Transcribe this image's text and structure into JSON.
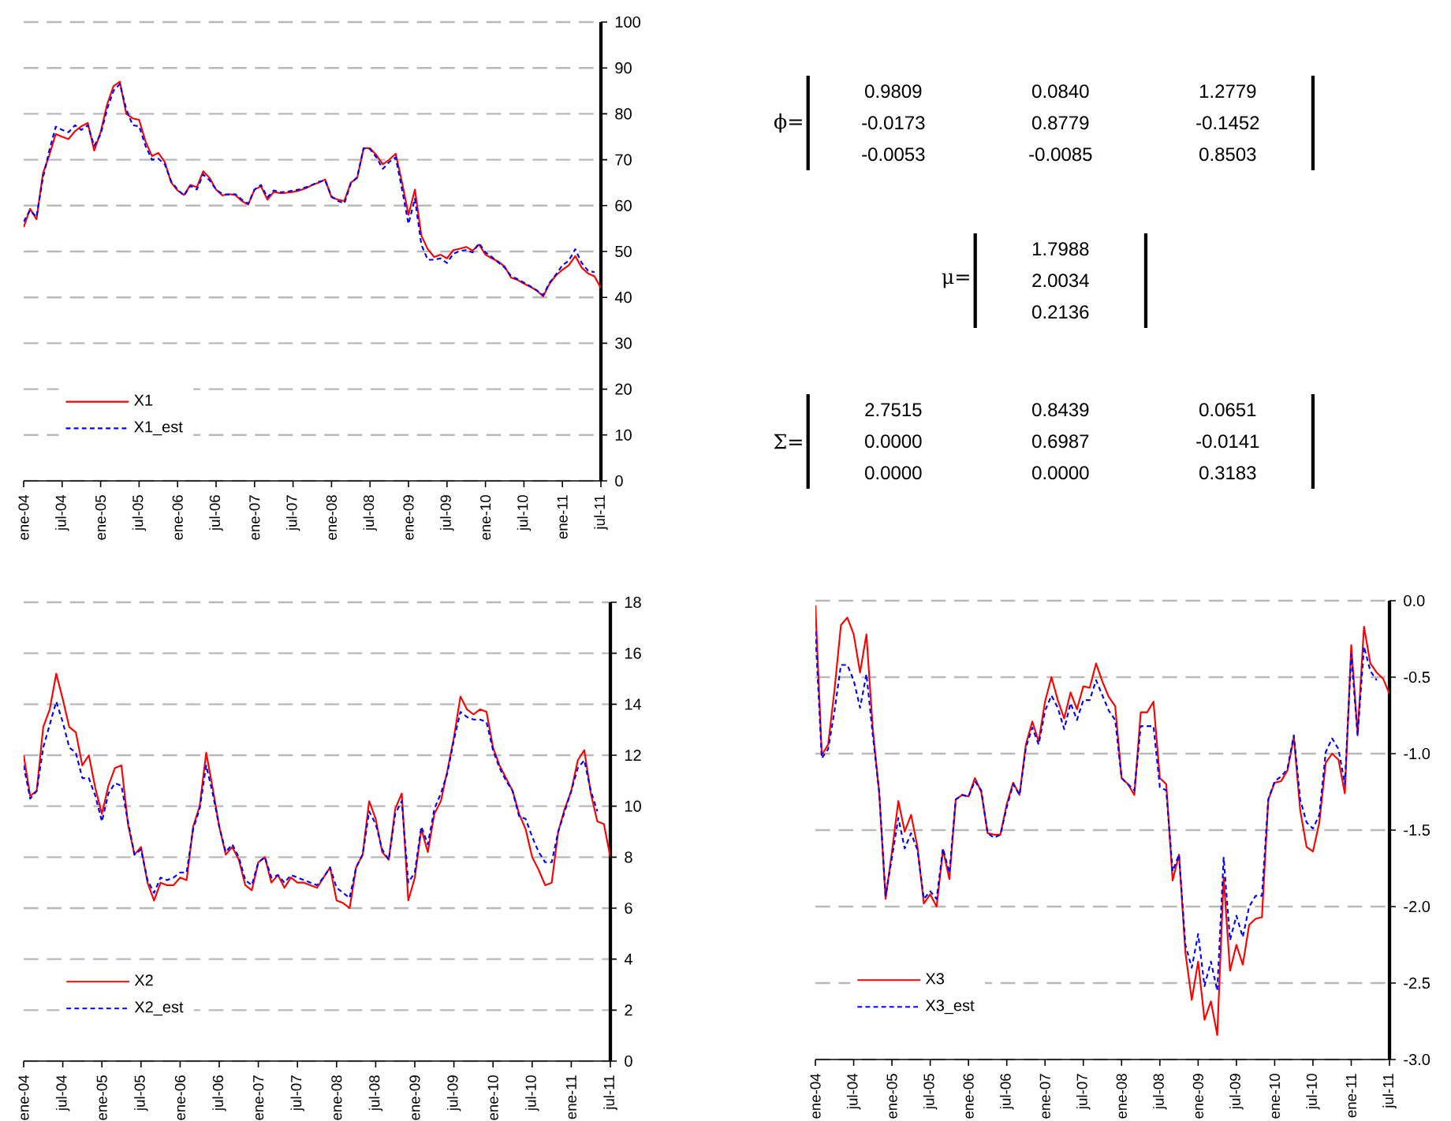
{
  "chart_data": [
    {
      "type": "line",
      "grid": "y",
      "legend": "bottom left",
      "marker": "none",
      "x": [
        "2004-01",
        "2004-02",
        "2004-03",
        "2004-04",
        "2004-05",
        "2004-06",
        "2004-07",
        "2004-08",
        "2004-09",
        "2004-10",
        "2004-11",
        "2004-12",
        "2005-01",
        "2005-02",
        "2005-03",
        "2005-04",
        "2005-05",
        "2005-06",
        "2005-07",
        "2005-08",
        "2005-09",
        "2005-10",
        "2005-11",
        "2005-12",
        "2006-01",
        "2006-02",
        "2006-03",
        "2006-04",
        "2006-05",
        "2006-06",
        "2006-07",
        "2006-08",
        "2006-09",
        "2006-10",
        "2006-11",
        "2006-12",
        "2007-01",
        "2007-02",
        "2007-03",
        "2007-04",
        "2007-05",
        "2007-06",
        "2007-07",
        "2007-08",
        "2007-09",
        "2007-10",
        "2007-11",
        "2007-12",
        "2008-01",
        "2008-02",
        "2008-03",
        "2008-04",
        "2008-05",
        "2008-06",
        "2008-07",
        "2008-08",
        "2008-09",
        "2008-10",
        "2008-11",
        "2008-12",
        "2009-01",
        "2009-02",
        "2009-03",
        "2009-04",
        "2009-05",
        "2009-06",
        "2009-07",
        "2009-08",
        "2009-09",
        "2009-10",
        "2009-11",
        "2009-12",
        "2010-01",
        "2010-02",
        "2010-03",
        "2010-04",
        "2010-05",
        "2010-06",
        "2010-07",
        "2010-08",
        "2010-09",
        "2010-10",
        "2010-11",
        "2010-12",
        "2011-01",
        "2011-02",
        "2011-03",
        "2011-04",
        "2011-05",
        "2011-06",
        "2011-07"
      ],
      "xlim": [
        "2004-01",
        "2011-07"
      ],
      "xticks": [
        {
          "value": "2004-01",
          "label": "ene-04"
        },
        {
          "value": "2004-07",
          "label": "jul-04"
        },
        {
          "value": "2005-01",
          "label": "ene-05"
        },
        {
          "value": "2005-07",
          "label": "jul-05"
        },
        {
          "value": "2006-01",
          "label": "ene-06"
        },
        {
          "value": "2006-07",
          "label": "jul-06"
        },
        {
          "value": "2007-01",
          "label": "ene-07"
        },
        {
          "value": "2007-07",
          "label": "jul-07"
        },
        {
          "value": "2008-01",
          "label": "ene-08"
        },
        {
          "value": "2008-07",
          "label": "jul-08"
        },
        {
          "value": "2009-01",
          "label": "ene-09"
        },
        {
          "value": "2009-07",
          "label": "jul-09"
        },
        {
          "value": "2010-01",
          "label": "ene-10"
        },
        {
          "value": "2010-07",
          "label": "jul-10"
        },
        {
          "value": "2011-01",
          "label": "ene-11"
        },
        {
          "value": "2011-07",
          "label": "jul-11"
        }
      ],
      "ylim": [
        0,
        100
      ],
      "yticks": [
        0,
        10,
        20,
        30,
        40,
        50,
        60,
        70,
        80,
        90,
        100
      ],
      "series": [
        {
          "name": "X1",
          "color": "#ff0000",
          "line_style": "solid",
          "values": [
            55.3,
            59.3,
            57,
            67,
            71,
            75.6,
            75,
            74.5,
            76.2,
            77.3,
            78,
            72,
            76,
            82,
            86,
            87,
            80,
            79,
            78.7,
            74,
            70.8,
            71.5,
            69.5,
            65,
            63.3,
            62.3,
            64.5,
            64,
            67.5,
            66,
            63.5,
            62.2,
            62.5,
            62.3,
            61,
            60.2,
            63.5,
            64.2,
            61.3,
            63,
            62.7,
            62.8,
            63,
            63.3,
            63.8,
            64.5,
            65,
            65.7,
            61.8,
            61.3,
            61,
            65,
            66,
            72.5,
            72.5,
            71,
            69,
            70,
            71.3,
            65,
            58,
            63.5,
            53.5,
            50.5,
            48.8,
            49.3,
            48.5,
            50.3,
            50.6,
            51,
            50.2,
            51.5,
            49.3,
            48.5,
            47.8,
            46.7,
            44.3,
            43.8,
            43,
            42.3,
            41.5,
            40.2,
            43,
            44.8,
            46,
            47,
            49,
            46.5,
            45.2,
            44.6,
            42
          ]
        },
        {
          "name": "X1_est",
          "color": "#0000ff",
          "line_style": "dashed",
          "values": [
            56.5,
            59,
            57.5,
            66,
            72,
            77.2,
            76.5,
            76,
            77.5,
            76.5,
            77.5,
            73,
            75.5,
            81,
            85,
            86.5,
            81,
            77.5,
            77.3,
            73,
            70,
            70.2,
            69,
            65.3,
            63.5,
            62.2,
            64.3,
            63.5,
            66.8,
            65.5,
            63.5,
            62.5,
            62.4,
            62.5,
            61.3,
            60.4,
            63.5,
            64.5,
            61.8,
            63.3,
            62.9,
            63,
            63.3,
            63.5,
            64,
            64.5,
            65.2,
            65.5,
            62,
            61,
            60.5,
            64.8,
            66.2,
            72.5,
            72.3,
            70.5,
            68,
            69.5,
            70.5,
            63.5,
            56,
            61.5,
            51.5,
            48.2,
            48.2,
            48.5,
            47.5,
            49.5,
            50.1,
            50.3,
            49.8,
            51.8,
            49.8,
            48.8,
            47.6,
            46.5,
            44.6,
            44,
            43.2,
            42.4,
            41.5,
            40.5,
            43.2,
            45,
            47,
            48,
            50.5,
            47.5,
            45.8,
            45.5,
            null
          ]
        }
      ]
    },
    {
      "type": "other",
      "annotations": [
        "ϕ=",
        "0.9809",
        "0.0840",
        "1.2779",
        "-0.0173",
        "0.8779",
        "-0.1452",
        "-0.0053",
        "-0.0085",
        "0.8503",
        "μ=",
        "1.7988",
        "2.0034",
        "0.2136",
        "Σ=",
        "2.7515",
        "0.8439",
        "0.0651",
        "0.0000",
        "0.6987",
        "-0.0141",
        "0.0000",
        "0.0000",
        "0.3183"
      ]
    },
    {
      "type": "line",
      "grid": "y",
      "legend": "bottom left",
      "marker": "none",
      "x": [
        "2004-01",
        "2004-02",
        "2004-03",
        "2004-04",
        "2004-05",
        "2004-06",
        "2004-07",
        "2004-08",
        "2004-09",
        "2004-10",
        "2004-11",
        "2004-12",
        "2005-01",
        "2005-02",
        "2005-03",
        "2005-04",
        "2005-05",
        "2005-06",
        "2005-07",
        "2005-08",
        "2005-09",
        "2005-10",
        "2005-11",
        "2005-12",
        "2006-01",
        "2006-02",
        "2006-03",
        "2006-04",
        "2006-05",
        "2006-06",
        "2006-07",
        "2006-08",
        "2006-09",
        "2006-10",
        "2006-11",
        "2006-12",
        "2007-01",
        "2007-02",
        "2007-03",
        "2007-04",
        "2007-05",
        "2007-06",
        "2007-07",
        "2007-08",
        "2007-09",
        "2007-10",
        "2007-11",
        "2007-12",
        "2008-01",
        "2008-02",
        "2008-03",
        "2008-04",
        "2008-05",
        "2008-06",
        "2008-07",
        "2008-08",
        "2008-09",
        "2008-10",
        "2008-11",
        "2008-12",
        "2009-01",
        "2009-02",
        "2009-03",
        "2009-04",
        "2009-05",
        "2009-06",
        "2009-07",
        "2009-08",
        "2009-09",
        "2009-10",
        "2009-11",
        "2009-12",
        "2010-01",
        "2010-02",
        "2010-03",
        "2010-04",
        "2010-05",
        "2010-06",
        "2010-07",
        "2010-08",
        "2010-09",
        "2010-10",
        "2010-11",
        "2010-12",
        "2011-01",
        "2011-02",
        "2011-03",
        "2011-04",
        "2011-05",
        "2011-06",
        "2011-07"
      ],
      "xlim": [
        "2004-01",
        "2011-07"
      ],
      "xticks": [
        {
          "value": "2004-01",
          "label": "ene-04"
        },
        {
          "value": "2004-07",
          "label": "jul-04"
        },
        {
          "value": "2005-01",
          "label": "ene-05"
        },
        {
          "value": "2005-07",
          "label": "jul-05"
        },
        {
          "value": "2006-01",
          "label": "ene-06"
        },
        {
          "value": "2006-07",
          "label": "jul-06"
        },
        {
          "value": "2007-01",
          "label": "ene-07"
        },
        {
          "value": "2007-07",
          "label": "jul-07"
        },
        {
          "value": "2008-01",
          "label": "ene-08"
        },
        {
          "value": "2008-07",
          "label": "jul-08"
        },
        {
          "value": "2009-01",
          "label": "ene-09"
        },
        {
          "value": "2009-07",
          "label": "jul-09"
        },
        {
          "value": "2010-01",
          "label": "ene-10"
        },
        {
          "value": "2010-07",
          "label": "jul-10"
        },
        {
          "value": "2011-01",
          "label": "ene-11"
        },
        {
          "value": "2011-07",
          "label": "jul-11"
        }
      ],
      "ylim": [
        0,
        18
      ],
      "yticks": [
        0,
        2,
        4,
        6,
        8,
        10,
        12,
        14,
        16,
        18
      ],
      "series": [
        {
          "name": "X2",
          "color": "#ff0000",
          "line_style": "solid",
          "values": [
            12.0,
            10.4,
            10.6,
            13.1,
            13.8,
            15.2,
            14.2,
            13.1,
            12.9,
            11.6,
            12.0,
            10.7,
            9.7,
            10.8,
            11.5,
            11.6,
            9.3,
            8.1,
            8.4,
            7.0,
            6.3,
            7.0,
            6.9,
            6.9,
            7.2,
            7.1,
            9.2,
            10.0,
            12.1,
            10.7,
            9.2,
            8.1,
            8.4,
            7.9,
            6.9,
            6.7,
            7.8,
            8.0,
            7.0,
            7.3,
            6.8,
            7.2,
            7.0,
            7.0,
            6.9,
            6.8,
            7.2,
            7.6,
            6.3,
            6.2,
            6.0,
            7.6,
            8.1,
            10.2,
            9.5,
            8.2,
            7.9,
            9.9,
            10.5,
            6.3,
            7.2,
            9.1,
            8.2,
            9.7,
            10.2,
            11.4,
            12.7,
            14.3,
            13.8,
            13.6,
            13.8,
            13.7,
            12.3,
            11.6,
            11.1,
            10.6,
            9.7,
            9.1,
            8.0,
            7.5,
            6.9,
            7.0,
            9.0,
            9.9,
            10.6,
            11.8,
            12.2,
            10.5,
            9.4,
            9.3,
            8.0
          ]
        },
        {
          "name": "X2_est",
          "color": "#0000ff",
          "line_style": "dashed",
          "values": [
            11.6,
            10.3,
            10.6,
            12.3,
            13.2,
            14.1,
            13.3,
            12.3,
            12.1,
            11.1,
            11.1,
            10.4,
            9.4,
            10.5,
            10.9,
            10.8,
            9.4,
            8.1,
            8.3,
            7.1,
            6.6,
            7.2,
            7.1,
            7.2,
            7.4,
            7.4,
            9.1,
            9.9,
            11.6,
            10.5,
            9.2,
            8.2,
            8.5,
            8.0,
            7.1,
            6.9,
            7.8,
            8.0,
            7.2,
            7.3,
            7.0,
            7.3,
            7.2,
            7.1,
            7.0,
            6.9,
            7.2,
            7.6,
            6.8,
            6.6,
            6.4,
            7.6,
            8.1,
            9.8,
            9.3,
            8.3,
            7.9,
            9.7,
            10.2,
            7.0,
            7.4,
            9.2,
            8.5,
            9.9,
            10.5,
            11.3,
            12.6,
            13.7,
            13.5,
            13.4,
            13.4,
            13.3,
            12.2,
            11.5,
            11.0,
            10.6,
            9.6,
            9.5,
            8.8,
            8.2,
            7.8,
            7.8,
            9.0,
            9.8,
            10.6,
            11.5,
            11.8,
            10.6,
            9.8,
            null,
            null
          ]
        }
      ]
    },
    {
      "type": "line",
      "grid": "y",
      "legend": "bottom left",
      "marker": "none",
      "x": [
        "2004-01",
        "2004-02",
        "2004-03",
        "2004-04",
        "2004-05",
        "2004-06",
        "2004-07",
        "2004-08",
        "2004-09",
        "2004-10",
        "2004-11",
        "2004-12",
        "2005-01",
        "2005-02",
        "2005-03",
        "2005-04",
        "2005-05",
        "2005-06",
        "2005-07",
        "2005-08",
        "2005-09",
        "2005-10",
        "2005-11",
        "2005-12",
        "2006-01",
        "2006-02",
        "2006-03",
        "2006-04",
        "2006-05",
        "2006-06",
        "2006-07",
        "2006-08",
        "2006-09",
        "2006-10",
        "2006-11",
        "2006-12",
        "2007-01",
        "2007-02",
        "2007-03",
        "2007-04",
        "2007-05",
        "2007-06",
        "2007-07",
        "2007-08",
        "2007-09",
        "2007-10",
        "2007-11",
        "2007-12",
        "2008-01",
        "2008-02",
        "2008-03",
        "2008-04",
        "2008-05",
        "2008-06",
        "2008-07",
        "2008-08",
        "2008-09",
        "2008-10",
        "2008-11",
        "2008-12",
        "2009-01",
        "2009-02",
        "2009-03",
        "2009-04",
        "2009-05",
        "2009-06",
        "2009-07",
        "2009-08",
        "2009-09",
        "2009-10",
        "2009-11",
        "2009-12",
        "2010-01",
        "2010-02",
        "2010-03",
        "2010-04",
        "2010-05",
        "2010-06",
        "2010-07",
        "2010-08",
        "2010-09",
        "2010-10",
        "2010-11",
        "2010-12",
        "2011-01",
        "2011-02",
        "2011-03",
        "2011-04",
        "2011-05",
        "2011-06",
        "2011-07"
      ],
      "xlim": [
        "2004-01",
        "2011-07"
      ],
      "xticks": [
        {
          "value": "2004-01",
          "label": "ene-04"
        },
        {
          "value": "2004-07",
          "label": "jul-04"
        },
        {
          "value": "2005-01",
          "label": "ene-05"
        },
        {
          "value": "2005-07",
          "label": "jul-05"
        },
        {
          "value": "2006-01",
          "label": "ene-06"
        },
        {
          "value": "2006-07",
          "label": "jul-06"
        },
        {
          "value": "2007-01",
          "label": "ene-07"
        },
        {
          "value": "2007-07",
          "label": "jul-07"
        },
        {
          "value": "2008-01",
          "label": "ene-08"
        },
        {
          "value": "2008-07",
          "label": "jul-08"
        },
        {
          "value": "2009-01",
          "label": "ene-09"
        },
        {
          "value": "2009-07",
          "label": "jul-09"
        },
        {
          "value": "2010-01",
          "label": "ene-10"
        },
        {
          "value": "2010-07",
          "label": "jul-10"
        },
        {
          "value": "2011-01",
          "label": "ene-11"
        },
        {
          "value": "2011-07",
          "label": "jul-11"
        }
      ],
      "ylim": [
        -3,
        0
      ],
      "yticks": [
        {
          "value": -3,
          "label": "-3.0"
        },
        -2.5,
        {
          "value": -2,
          "label": "-2.0"
        },
        -1.5,
        {
          "value": -1,
          "label": "-1.0"
        },
        -0.5,
        {
          "value": 0,
          "label": "0.0"
        }
      ],
      "series": [
        {
          "name": "X3",
          "color": "#ff0000",
          "line_style": "solid",
          "values": [
            -0.03,
            -1.01,
            -0.94,
            -0.58,
            -0.16,
            -0.11,
            -0.22,
            -0.47,
            -0.22,
            -0.84,
            -1.26,
            -1.95,
            -1.64,
            -1.31,
            -1.51,
            -1.4,
            -1.61,
            -1.98,
            -1.92,
            -2.0,
            -1.63,
            -1.82,
            -1.3,
            -1.27,
            -1.28,
            -1.16,
            -1.25,
            -1.52,
            -1.53,
            -1.53,
            -1.33,
            -1.19,
            -1.27,
            -0.94,
            -0.79,
            -0.92,
            -0.66,
            -0.5,
            -0.65,
            -0.77,
            -0.6,
            -0.71,
            -0.56,
            -0.57,
            -0.41,
            -0.53,
            -0.63,
            -0.69,
            -1.16,
            -1.2,
            -1.27,
            -0.73,
            -0.73,
            -0.66,
            -1.16,
            -1.2,
            -1.83,
            -1.66,
            -2.3,
            -2.61,
            -2.36,
            -2.74,
            -2.62,
            -2.84,
            -1.81,
            -2.42,
            -2.25,
            -2.38,
            -2.12,
            -2.08,
            -2.07,
            -1.3,
            -1.19,
            -1.18,
            -1.11,
            -0.89,
            -1.37,
            -1.61,
            -1.64,
            -1.45,
            -1.06,
            -1.0,
            -1.04,
            -1.26,
            -0.29,
            -0.87,
            -0.17,
            -0.41,
            -0.47,
            -0.51,
            -0.61
          ]
        },
        {
          "name": "X3_est",
          "color": "#0000ff",
          "line_style": "dashed",
          "values": [
            -0.2,
            -1.03,
            -0.97,
            -0.72,
            -0.42,
            -0.42,
            -0.52,
            -0.7,
            -0.48,
            -0.88,
            -1.25,
            -1.93,
            -1.68,
            -1.42,
            -1.62,
            -1.52,
            -1.63,
            -1.95,
            -1.9,
            -1.95,
            -1.62,
            -1.78,
            -1.3,
            -1.27,
            -1.28,
            -1.18,
            -1.24,
            -1.52,
            -1.55,
            -1.53,
            -1.35,
            -1.2,
            -1.27,
            -0.96,
            -0.83,
            -0.94,
            -0.72,
            -0.62,
            -0.7,
            -0.84,
            -0.67,
            -0.78,
            -0.65,
            -0.65,
            -0.52,
            -0.62,
            -0.72,
            -0.78,
            -1.16,
            -1.2,
            -1.24,
            -0.82,
            -0.82,
            -0.82,
            -1.22,
            -1.24,
            -1.77,
            -1.66,
            -2.25,
            -2.4,
            -2.18,
            -2.52,
            -2.36,
            -2.55,
            -1.68,
            -2.22,
            -2.06,
            -2.2,
            -2.0,
            -1.93,
            -1.93,
            -1.3,
            -1.18,
            -1.15,
            -1.1,
            -0.88,
            -1.3,
            -1.45,
            -1.49,
            -1.4,
            -0.99,
            -0.9,
            -0.97,
            -1.2,
            -0.35,
            -0.88,
            -0.3,
            -0.46,
            -0.52,
            null,
            null
          ]
        }
      ]
    }
  ]
}
